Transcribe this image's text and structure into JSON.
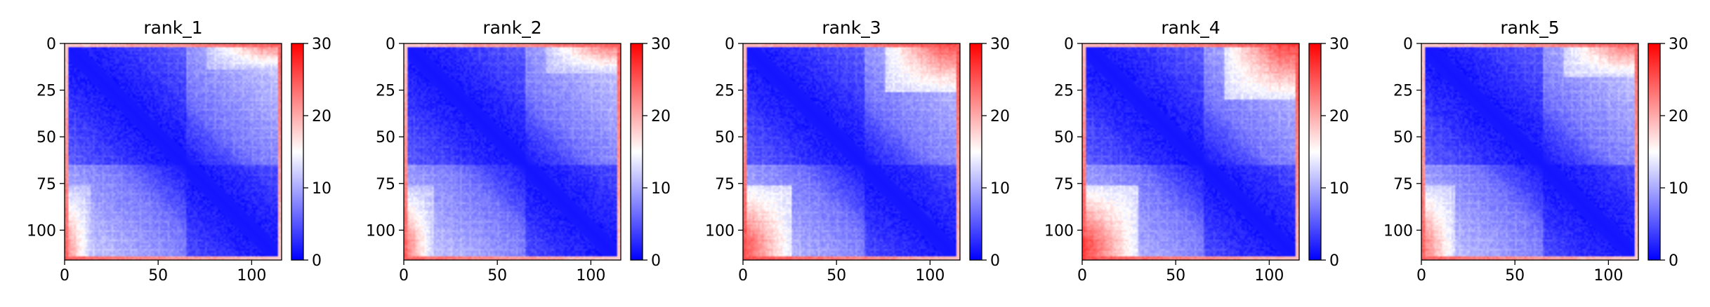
{
  "figure": {
    "colormap": {
      "name": "bwr",
      "low_color": "#0000ff",
      "mid_color": "#ffffff",
      "high_color": "#ff0000"
    },
    "panel_titles": [
      "rank_1",
      "rank_2",
      "rank_3",
      "rank_4",
      "rank_5"
    ]
  },
  "chart_data": [
    {
      "type": "heatmap",
      "title": "rank_1",
      "matrix_size": 116,
      "x_ticks": [
        "0",
        "50",
        "100"
      ],
      "y_ticks": [
        "0",
        "25",
        "50",
        "75",
        "100"
      ],
      "xlim": [
        0,
        116
      ],
      "ylim": [
        0,
        116
      ],
      "colorbar": {
        "range": [
          0,
          30
        ],
        "ticks": [
          "0",
          "10",
          "20",
          "30"
        ]
      },
      "pattern": {
        "domain_boundary": 65,
        "corner_level": 22,
        "corner_extent": 14,
        "far_level": 14,
        "edge_level": 22
      }
    },
    {
      "type": "heatmap",
      "title": "rank_2",
      "matrix_size": 116,
      "x_ticks": [
        "0",
        "50",
        "100"
      ],
      "y_ticks": [
        "0",
        "25",
        "50",
        "75",
        "100"
      ],
      "xlim": [
        0,
        116
      ],
      "ylim": [
        0,
        116
      ],
      "colorbar": {
        "range": [
          0,
          30
        ],
        "ticks": [
          "0",
          "10",
          "20",
          "30"
        ]
      },
      "pattern": {
        "domain_boundary": 65,
        "corner_level": 23,
        "corner_extent": 16,
        "far_level": 14,
        "edge_level": 22
      }
    },
    {
      "type": "heatmap",
      "title": "rank_3",
      "matrix_size": 116,
      "x_ticks": [
        "0",
        "50",
        "100"
      ],
      "y_ticks": [
        "0",
        "25",
        "50",
        "75",
        "100"
      ],
      "xlim": [
        0,
        116
      ],
      "ylim": [
        0,
        116
      ],
      "colorbar": {
        "range": [
          0,
          30
        ],
        "ticks": [
          "0",
          "10",
          "20",
          "30"
        ]
      },
      "pattern": {
        "domain_boundary": 65,
        "corner_level": 25,
        "corner_extent": 26,
        "far_level": 16,
        "edge_level": 23
      }
    },
    {
      "type": "heatmap",
      "title": "rank_4",
      "matrix_size": 116,
      "x_ticks": [
        "0",
        "50",
        "100"
      ],
      "y_ticks": [
        "0",
        "25",
        "50",
        "75",
        "100"
      ],
      "xlim": [
        0,
        116
      ],
      "ylim": [
        0,
        116
      ],
      "colorbar": {
        "range": [
          0,
          30
        ],
        "ticks": [
          "0",
          "10",
          "20",
          "30"
        ]
      },
      "pattern": {
        "domain_boundary": 65,
        "corner_level": 26,
        "corner_extent": 30,
        "far_level": 16,
        "edge_level": 23
      }
    },
    {
      "type": "heatmap",
      "title": "rank_5",
      "matrix_size": 116,
      "x_ticks": [
        "0",
        "50",
        "100"
      ],
      "y_ticks": [
        "0",
        "25",
        "50",
        "75",
        "100"
      ],
      "xlim": [
        0,
        116
      ],
      "ylim": [
        0,
        116
      ],
      "colorbar": {
        "range": [
          0,
          30
        ],
        "ticks": [
          "0",
          "10",
          "20",
          "30"
        ]
      },
      "pattern": {
        "domain_boundary": 65,
        "corner_level": 23,
        "corner_extent": 18,
        "far_level": 15,
        "edge_level": 22
      }
    }
  ]
}
